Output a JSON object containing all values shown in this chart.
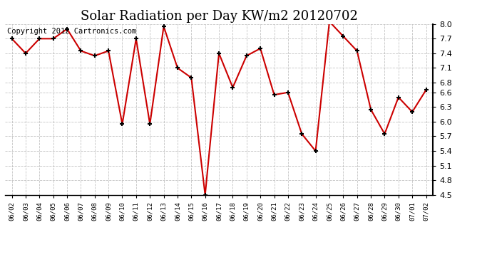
{
  "title": "Solar Radiation per Day KW/m2 20120702",
  "copyright_text": "Copyright 2012 Cartronics.com",
  "dates": [
    "06/02",
    "06/03",
    "06/04",
    "06/05",
    "06/06",
    "06/07",
    "06/08",
    "06/09",
    "06/10",
    "06/11",
    "06/12",
    "06/13",
    "06/14",
    "06/15",
    "06/16",
    "06/17",
    "06/18",
    "06/19",
    "06/20",
    "06/21",
    "06/22",
    "06/23",
    "06/24",
    "06/25",
    "06/26",
    "06/27",
    "06/28",
    "06/29",
    "06/30",
    "07/01",
    "07/02"
  ],
  "values": [
    7.7,
    7.4,
    7.7,
    7.7,
    7.9,
    7.45,
    7.35,
    7.45,
    5.95,
    7.7,
    5.95,
    7.95,
    7.1,
    6.9,
    4.5,
    7.4,
    6.7,
    7.35,
    7.5,
    6.55,
    6.6,
    5.75,
    5.4,
    8.05,
    7.75,
    7.45,
    6.25,
    5.75,
    6.5,
    6.2,
    6.65
  ],
  "line_color": "#cc0000",
  "marker": "+",
  "marker_color": "#000000",
  "bg_color": "#ffffff",
  "plot_bg_color": "#ffffff",
  "grid_color": "#aaaaaa",
  "title_fontsize": 13,
  "copyright_fontsize": 7.5,
  "ylim": [
    4.5,
    8.0
  ],
  "yticks": [
    4.5,
    4.8,
    5.1,
    5.4,
    5.7,
    6.0,
    6.3,
    6.6,
    6.8,
    7.1,
    7.4,
    7.7,
    8.0
  ]
}
